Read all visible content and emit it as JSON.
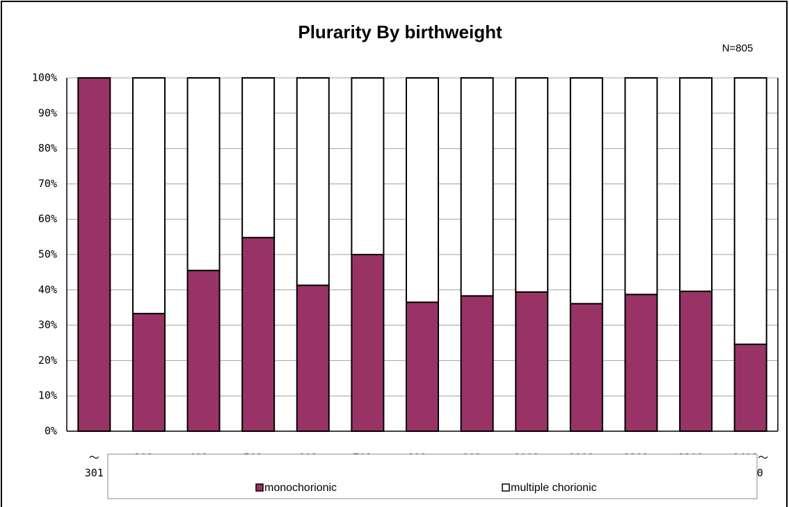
{
  "chart_data": {
    "type": "stacked_bar",
    "title": "Plurarity By birthweight",
    "annotation": "N=805",
    "categories": [
      "～301",
      "301～400",
      "401～500",
      "501～600",
      "601～700",
      "701～800",
      "801～900",
      "901～1000",
      "1001～1100",
      "1101～1200",
      "1201～1300",
      "1301～1400",
      "1401～1500"
    ],
    "series": [
      {
        "name": "monochorionic",
        "color": "#993366",
        "values": [
          100,
          33.3,
          45.5,
          54.8,
          41.3,
          50,
          36.5,
          38.3,
          39.4,
          36.1,
          38.7,
          39.6,
          24.6
        ]
      },
      {
        "name": "multiple chorionic",
        "color": "#ffffff",
        "values": [
          0,
          66.7,
          54.5,
          45.2,
          58.7,
          50,
          63.5,
          61.7,
          60.6,
          63.9,
          61.3,
          60.4,
          75.4
        ]
      }
    ],
    "ylim": [
      0,
      100
    ],
    "yticks": [
      {
        "value": 0,
        "label": "0%"
      },
      {
        "value": 10,
        "label": "10%"
      },
      {
        "value": 20,
        "label": "20%"
      },
      {
        "value": 30,
        "label": "30%"
      },
      {
        "value": 40,
        "label": "40%"
      },
      {
        "value": 50,
        "label": "50%"
      },
      {
        "value": 60,
        "label": "60%"
      },
      {
        "value": 70,
        "label": "70%"
      },
      {
        "value": 80,
        "label": "80%"
      },
      {
        "value": 90,
        "label": "90%"
      },
      {
        "value": 100,
        "label": "100%"
      }
    ],
    "grid": true,
    "legend": "bottom"
  }
}
